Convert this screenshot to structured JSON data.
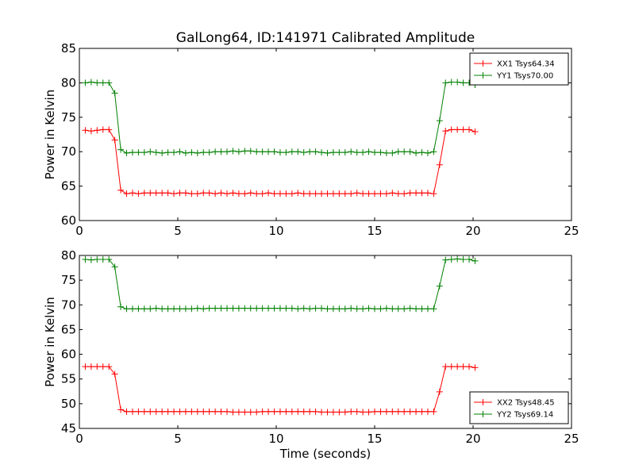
{
  "chart_data": [
    {
      "type": "line",
      "title": "GalLong64, ID:141971 Calibrated Amplitude",
      "xlabel": "",
      "ylabel": "Power in Kelvin",
      "xlim": [
        0,
        25
      ],
      "ylim": [
        60,
        85
      ],
      "xticks": [
        0,
        5,
        10,
        15,
        20,
        25
      ],
      "yticks": [
        60,
        65,
        70,
        75,
        80,
        85
      ],
      "legend_position": "top-right",
      "x": [
        0.3,
        0.6,
        0.9,
        1.2,
        1.5,
        1.8,
        2.1,
        2.4,
        2.7,
        3.0,
        3.3,
        3.6,
        3.9,
        4.2,
        4.5,
        4.8,
        5.1,
        5.4,
        5.7,
        6.0,
        6.3,
        6.6,
        6.9,
        7.2,
        7.5,
        7.8,
        8.1,
        8.4,
        8.7,
        9.0,
        9.3,
        9.6,
        9.9,
        10.2,
        10.5,
        10.8,
        11.1,
        11.4,
        11.7,
        12.0,
        12.3,
        12.6,
        12.9,
        13.2,
        13.5,
        13.8,
        14.1,
        14.4,
        14.7,
        15.0,
        15.3,
        15.6,
        15.9,
        16.2,
        16.5,
        16.8,
        17.1,
        17.4,
        17.7,
        18.0,
        18.3,
        18.6,
        18.9,
        19.2,
        19.5,
        19.8,
        20.1
      ],
      "series": [
        {
          "name": "XX1 Tsys64.34",
          "color": "#ff0000",
          "values": [
            73.1,
            73.0,
            73.1,
            73.2,
            73.2,
            71.7,
            64.4,
            63.9,
            64.0,
            63.9,
            64.0,
            64.0,
            64.0,
            64.0,
            64.0,
            63.9,
            64.0,
            64.0,
            63.9,
            63.9,
            64.0,
            64.0,
            63.9,
            64.0,
            63.9,
            64.0,
            63.9,
            63.9,
            64.0,
            63.9,
            63.9,
            64.0,
            63.9,
            63.9,
            63.9,
            63.9,
            64.0,
            63.9,
            63.9,
            63.9,
            63.9,
            63.9,
            63.9,
            63.9,
            63.9,
            63.9,
            64.0,
            63.9,
            63.9,
            63.9,
            63.9,
            63.9,
            64.0,
            63.9,
            63.9,
            64.0,
            64.0,
            64.0,
            64.0,
            63.9,
            68.1,
            73.0,
            73.2,
            73.2,
            73.2,
            73.2,
            72.9
          ]
        },
        {
          "name": "YY1 Tsys70.00",
          "color": "#008000",
          "values": [
            80.0,
            80.1,
            80.0,
            80.0,
            80.0,
            78.5,
            70.3,
            69.8,
            69.9,
            69.9,
            69.9,
            70.0,
            69.9,
            69.8,
            69.9,
            69.9,
            70.0,
            69.8,
            69.9,
            69.8,
            69.9,
            69.9,
            70.0,
            70.0,
            70.0,
            70.1,
            70.0,
            70.1,
            70.1,
            70.0,
            70.0,
            70.0,
            70.0,
            69.9,
            69.9,
            70.0,
            70.0,
            69.9,
            70.0,
            70.0,
            69.9,
            69.8,
            69.9,
            69.9,
            69.9,
            70.0,
            69.9,
            69.9,
            70.0,
            69.9,
            69.9,
            69.8,
            69.8,
            70.0,
            70.0,
            70.0,
            69.8,
            69.9,
            69.8,
            70.0,
            74.5,
            80.0,
            80.1,
            80.1,
            80.0,
            80.0,
            79.7
          ]
        }
      ]
    },
    {
      "type": "line",
      "title": "",
      "xlabel": "Time (seconds)",
      "ylabel": "Power in Kelvin",
      "xlim": [
        0,
        25
      ],
      "ylim": [
        45,
        80
      ],
      "xticks": [
        0,
        5,
        10,
        15,
        20,
        25
      ],
      "yticks": [
        45,
        50,
        55,
        60,
        65,
        70,
        75,
        80
      ],
      "legend_position": "bottom-right",
      "x": [
        0.3,
        0.6,
        0.9,
        1.2,
        1.5,
        1.8,
        2.1,
        2.4,
        2.7,
        3.0,
        3.3,
        3.6,
        3.9,
        4.2,
        4.5,
        4.8,
        5.1,
        5.4,
        5.7,
        6.0,
        6.3,
        6.6,
        6.9,
        7.2,
        7.5,
        7.8,
        8.1,
        8.4,
        8.7,
        9.0,
        9.3,
        9.6,
        9.9,
        10.2,
        10.5,
        10.8,
        11.1,
        11.4,
        11.7,
        12.0,
        12.3,
        12.6,
        12.9,
        13.2,
        13.5,
        13.8,
        14.1,
        14.4,
        14.7,
        15.0,
        15.3,
        15.6,
        15.9,
        16.2,
        16.5,
        16.8,
        17.1,
        17.4,
        17.7,
        18.0,
        18.3,
        18.6,
        18.9,
        19.2,
        19.5,
        19.8,
        20.1
      ],
      "series": [
        {
          "name": "XX2 Tsys48.45",
          "color": "#ff0000",
          "values": [
            57.5,
            57.5,
            57.5,
            57.5,
            57.5,
            56.0,
            48.8,
            48.4,
            48.4,
            48.4,
            48.4,
            48.4,
            48.4,
            48.4,
            48.4,
            48.4,
            48.4,
            48.4,
            48.4,
            48.4,
            48.4,
            48.4,
            48.4,
            48.4,
            48.4,
            48.3,
            48.3,
            48.3,
            48.3,
            48.3,
            48.4,
            48.4,
            48.4,
            48.4,
            48.4,
            48.4,
            48.4,
            48.4,
            48.4,
            48.4,
            48.3,
            48.3,
            48.3,
            48.3,
            48.3,
            48.4,
            48.4,
            48.3,
            48.3,
            48.4,
            48.4,
            48.4,
            48.4,
            48.4,
            48.4,
            48.4,
            48.4,
            48.4,
            48.4,
            48.4,
            52.4,
            57.5,
            57.5,
            57.5,
            57.5,
            57.5,
            57.3
          ]
        },
        {
          "name": "YY2 Tsys69.14",
          "color": "#008000",
          "values": [
            79.2,
            79.1,
            79.2,
            79.2,
            79.2,
            77.7,
            69.6,
            69.2,
            69.2,
            69.2,
            69.2,
            69.2,
            69.3,
            69.2,
            69.2,
            69.2,
            69.2,
            69.2,
            69.2,
            69.3,
            69.2,
            69.3,
            69.3,
            69.3,
            69.3,
            69.3,
            69.3,
            69.3,
            69.3,
            69.3,
            69.3,
            69.3,
            69.3,
            69.3,
            69.3,
            69.3,
            69.2,
            69.3,
            69.2,
            69.3,
            69.3,
            69.2,
            69.2,
            69.2,
            69.2,
            69.3,
            69.2,
            69.2,
            69.3,
            69.2,
            69.2,
            69.3,
            69.2,
            69.2,
            69.2,
            69.3,
            69.2,
            69.2,
            69.2,
            69.2,
            73.8,
            79.1,
            79.2,
            79.3,
            79.2,
            79.2,
            78.9
          ]
        }
      ]
    }
  ]
}
